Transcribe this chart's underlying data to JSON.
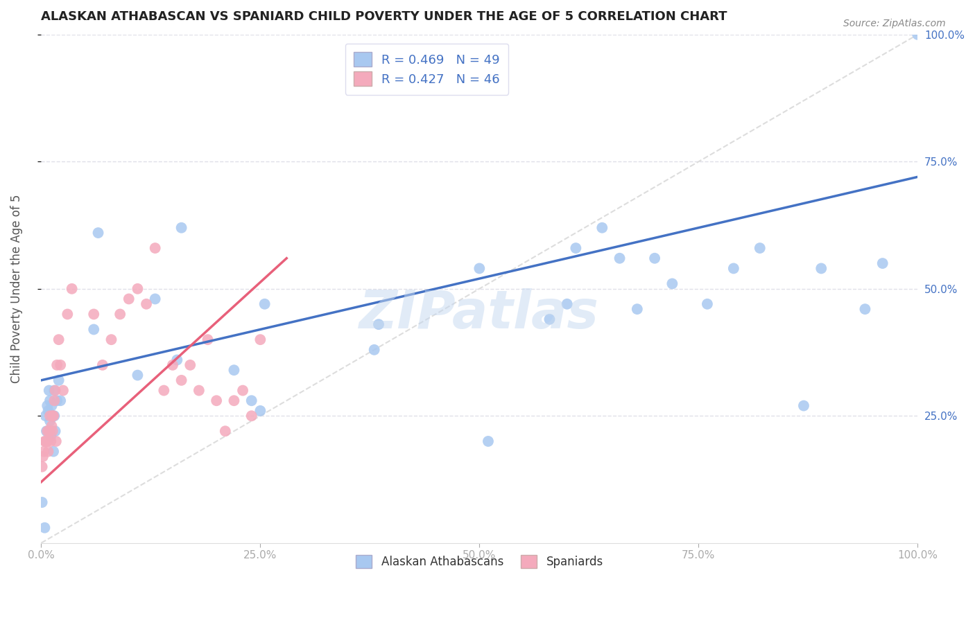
{
  "title": "ALASKAN ATHABASCAN VS SPANIARD CHILD POVERTY UNDER THE AGE OF 5 CORRELATION CHART",
  "source": "Source: ZipAtlas.com",
  "ylabel": "Child Poverty Under the Age of 5",
  "legend_labels": [
    "Alaskan Athabascans",
    "Spaniards"
  ],
  "r_blue": 0.469,
  "n_blue": 49,
  "r_pink": 0.427,
  "n_pink": 46,
  "blue_color": "#A8C8F0",
  "pink_color": "#F4AABC",
  "blue_line_color": "#4472C4",
  "pink_line_color": "#E8607A",
  "diagonal_color": "#DDDDDD",
  "watermark": "ZIPatlas",
  "blue_scatter_x": [
    0.001,
    0.004,
    0.005,
    0.006,
    0.007,
    0.008,
    0.009,
    0.01,
    0.01,
    0.011,
    0.012,
    0.013,
    0.014,
    0.015,
    0.015,
    0.016,
    0.018,
    0.02,
    0.022,
    0.06,
    0.065,
    0.11,
    0.13,
    0.155,
    0.16,
    0.22,
    0.24,
    0.25,
    0.255,
    0.38,
    0.385,
    0.5,
    0.51,
    0.58,
    0.6,
    0.61,
    0.64,
    0.66,
    0.68,
    0.7,
    0.72,
    0.76,
    0.79,
    0.82,
    0.87,
    0.89,
    0.94,
    0.96,
    1.0
  ],
  "blue_scatter_y": [
    0.08,
    0.03,
    0.25,
    0.22,
    0.27,
    0.26,
    0.3,
    0.24,
    0.28,
    0.21,
    0.27,
    0.25,
    0.18,
    0.3,
    0.25,
    0.22,
    0.28,
    0.32,
    0.28,
    0.42,
    0.61,
    0.33,
    0.48,
    0.36,
    0.62,
    0.34,
    0.28,
    0.26,
    0.47,
    0.38,
    0.43,
    0.54,
    0.2,
    0.44,
    0.47,
    0.58,
    0.62,
    0.56,
    0.46,
    0.56,
    0.51,
    0.47,
    0.54,
    0.58,
    0.27,
    0.54,
    0.46,
    0.55,
    1.0
  ],
  "pink_scatter_x": [
    0.001,
    0.002,
    0.003,
    0.004,
    0.005,
    0.006,
    0.007,
    0.007,
    0.008,
    0.009,
    0.01,
    0.01,
    0.011,
    0.012,
    0.013,
    0.013,
    0.014,
    0.015,
    0.016,
    0.017,
    0.018,
    0.02,
    0.022,
    0.025,
    0.03,
    0.035,
    0.06,
    0.07,
    0.08,
    0.09,
    0.1,
    0.11,
    0.12,
    0.13,
    0.14,
    0.15,
    0.16,
    0.17,
    0.18,
    0.19,
    0.2,
    0.21,
    0.22,
    0.23,
    0.24,
    0.25
  ],
  "pink_scatter_y": [
    0.15,
    0.17,
    0.18,
    0.2,
    0.2,
    0.2,
    0.2,
    0.22,
    0.18,
    0.22,
    0.22,
    0.25,
    0.2,
    0.23,
    0.22,
    0.25,
    0.25,
    0.28,
    0.3,
    0.2,
    0.35,
    0.4,
    0.35,
    0.3,
    0.45,
    0.5,
    0.45,
    0.35,
    0.4,
    0.45,
    0.48,
    0.5,
    0.47,
    0.58,
    0.3,
    0.35,
    0.32,
    0.35,
    0.3,
    0.4,
    0.28,
    0.22,
    0.28,
    0.3,
    0.25,
    0.4
  ],
  "xlim": [
    0.0,
    1.0
  ],
  "ylim": [
    0.0,
    1.0
  ],
  "xticks": [
    0.0,
    0.25,
    0.5,
    0.75,
    1.0
  ],
  "xtick_labels": [
    "0.0%",
    "25.0%",
    "50.0%",
    "75.0%",
    "100.0%"
  ],
  "yticks_right": [
    0.25,
    0.5,
    0.75,
    1.0
  ],
  "ytick_labels_right": [
    "25.0%",
    "50.0%",
    "75.0%",
    "100.0%"
  ],
  "background_color": "#FFFFFF",
  "grid_color": "#E0E0E8",
  "blue_line_start_y": 0.32,
  "blue_line_end_y": 0.72,
  "pink_line_x0": 0.0,
  "pink_line_y0": 0.12,
  "pink_line_x1": 0.28,
  "pink_line_y1": 0.56
}
